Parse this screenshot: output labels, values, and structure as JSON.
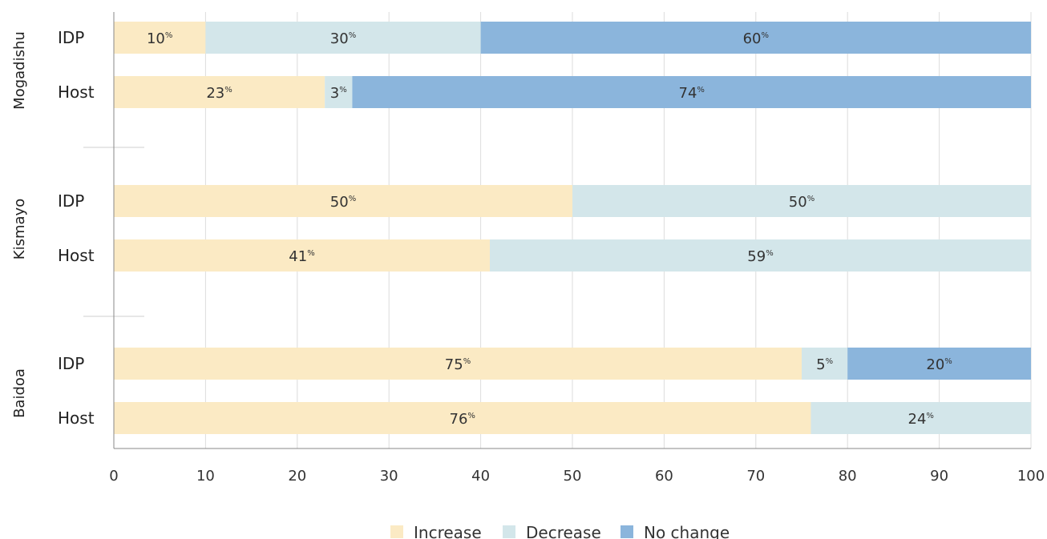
{
  "chart_data": {
    "type": "bar",
    "orientation": "horizontal",
    "stacked": true,
    "xlim": [
      0,
      100
    ],
    "x_ticks": [
      0,
      10,
      20,
      30,
      40,
      50,
      60,
      70,
      80,
      90,
      100
    ],
    "grid": true,
    "legend_position": "bottom-center",
    "value_suffix": "%",
    "groups": [
      {
        "name": "Mogadishu",
        "categories": [
          "IDP",
          "Host"
        ]
      },
      {
        "name": "Kismayo",
        "categories": [
          "IDP",
          "Host"
        ]
      },
      {
        "name": "Baidoa",
        "categories": [
          "IDP",
          "Host"
        ]
      }
    ],
    "series": [
      {
        "name": "Increase",
        "color": "#fbeac4",
        "values": [
          10,
          23,
          50,
          41,
          75,
          76
        ]
      },
      {
        "name": "Decrease",
        "color": "#d3e6ea",
        "values": [
          30,
          3,
          50,
          59,
          5,
          24
        ]
      },
      {
        "name": "No change",
        "color": "#8bb5dc",
        "values": [
          60,
          74,
          0,
          0,
          20,
          0
        ]
      }
    ]
  }
}
